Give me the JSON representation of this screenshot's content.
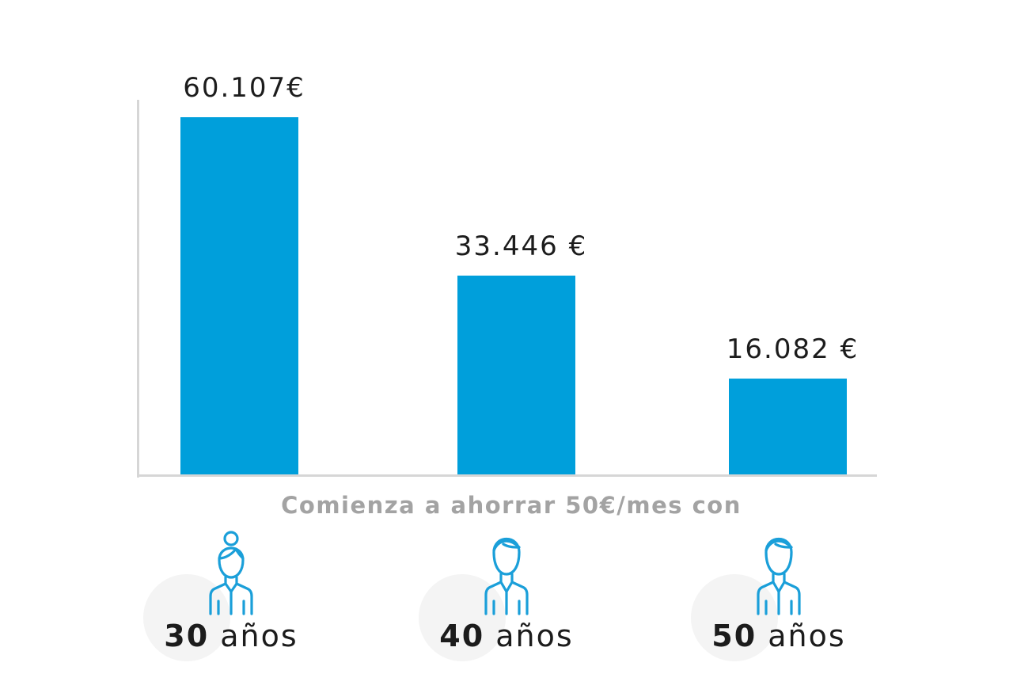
{
  "chart_data": {
    "type": "bar",
    "categories": [
      "30 años",
      "40 años",
      "50 años"
    ],
    "values": [
      60107,
      33446,
      16082
    ],
    "value_labels": [
      "60.107€",
      "33.446 €",
      "16.082 €"
    ],
    "xlabel": "Comienza a ahorrar 50€/mes con",
    "ylabel": "",
    "ylim": [
      0,
      63000
    ],
    "grid": false,
    "bar_color": "#009fdb",
    "category_parts": [
      {
        "num": "30",
        "unit": "años",
        "icon": "woman-avatar-icon"
      },
      {
        "num": "40",
        "unit": "años",
        "icon": "man-avatar-icon"
      },
      {
        "num": "50",
        "unit": "años",
        "icon": "man-avatar-icon"
      }
    ]
  }
}
